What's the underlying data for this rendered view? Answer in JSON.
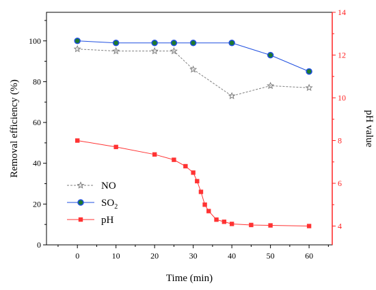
{
  "chart_data": {
    "type": "line",
    "title": "",
    "xlabel": "Time (min)",
    "ylabel_left": "Removal efficiency (%)",
    "ylabel_right": "pH value",
    "xlim": [
      -8,
      66
    ],
    "ylim_left": [
      0,
      114
    ],
    "ylim_right": [
      3.12,
      14
    ],
    "x_ticks": [
      "0",
      "10",
      "20",
      "30",
      "40",
      "50",
      "60"
    ],
    "y_left_ticks": [
      "0",
      "20",
      "40",
      "60",
      "80",
      "100"
    ],
    "y_right_ticks": [
      "4",
      "6",
      "8",
      "10",
      "12",
      "14"
    ],
    "series": [
      {
        "name": "NO",
        "axis": "left",
        "color": "#7f7f7f",
        "marker": "star",
        "line": "dashed",
        "x": [
          0,
          10,
          20,
          25,
          30,
          40,
          50,
          60
        ],
        "values": [
          96,
          95,
          95,
          95,
          86,
          73,
          78,
          77
        ]
      },
      {
        "name": "SO",
        "name_subscript": "2",
        "axis": "left",
        "color": "#1f4fe0",
        "marker_fill": "#1e7a2e",
        "marker": "circle",
        "line": "solid",
        "x": [
          0,
          10,
          20,
          25,
          30,
          40,
          50,
          60
        ],
        "values": [
          100,
          99,
          99,
          99,
          99,
          99,
          93,
          85
        ]
      },
      {
        "name": "pH",
        "axis": "right",
        "color": "#ff3333",
        "marker": "square",
        "line": "solid",
        "x": [
          0,
          10,
          20,
          25,
          28,
          30,
          31,
          32,
          33,
          34,
          36,
          38,
          40,
          45,
          50,
          60
        ],
        "values": [
          8.0,
          7.7,
          7.35,
          7.1,
          6.8,
          6.5,
          6.1,
          5.6,
          5.0,
          4.7,
          4.3,
          4.2,
          4.1,
          4.05,
          4.03,
          4.0
        ]
      }
    ],
    "legend_position": "lower-left"
  }
}
